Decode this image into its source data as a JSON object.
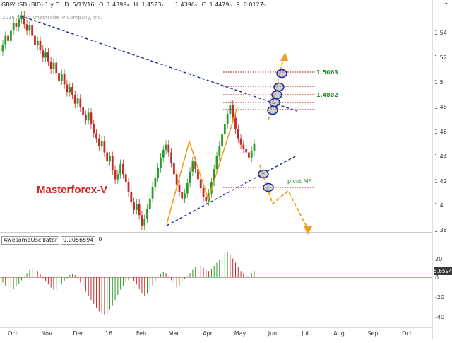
{
  "header": {
    "symbol": "GBP/USD (BID) 1 y D",
    "date": "D: 5/17/16",
    "open": "O: 1.4399₄",
    "high": "H: 1.4523₁",
    "low": "L: 1.4396₅",
    "close": "C: 1.4479₆",
    "range": "R: 0.0127₅"
  },
  "copyright": "2016 © TD Ameritrade IP Company, Inc.",
  "brand_text": "Masterforex-V",
  "levels": {
    "upper": "1.5063",
    "lower": "1.4882",
    "pivot": "pivot MF"
  },
  "oscillator_header": {
    "name": "AwesomeOscillator",
    "value": "0.0056594",
    "third": "0"
  },
  "oscillator_value_box": "5.65941",
  "price_axis_ticks": [
    "1.54",
    "1.52",
    "1.5",
    "1.48",
    "1.46",
    "1.44",
    "1.42",
    "1.4",
    "1.38"
  ],
  "osc_axis_ticks": [
    "20",
    "0",
    "-20",
    "-40"
  ],
  "time_axis_ticks": [
    "Oct",
    "Nov",
    "Dec",
    "16",
    "Feb",
    "Mar",
    "Apr",
    "May",
    "Jun",
    "Jul",
    "Aug",
    "Sep",
    "Oct"
  ],
  "colors": {
    "bull": "#2a9a2a",
    "bear": "#c42a2a",
    "trendline": "#1a2a9a",
    "projection": "#f0a020",
    "level_line": "#c42a2a",
    "circle": "#1a2aa0",
    "brand": "#d42020"
  },
  "chart_data": {
    "type": "candlestick",
    "series": [
      {
        "name": "GBP/USD (BID)",
        "close": [
          1.525,
          1.532,
          1.528,
          1.536,
          1.542,
          1.539,
          1.545,
          1.548,
          1.541,
          1.536,
          1.54,
          1.532,
          1.525,
          1.528,
          1.521,
          1.515,
          1.519,
          1.512,
          1.506,
          1.511,
          1.503,
          1.497,
          1.502,
          1.494,
          1.488,
          1.492,
          1.486,
          1.479,
          1.483,
          1.476,
          1.47,
          1.466,
          1.472,
          1.463,
          1.456,
          1.452,
          1.446,
          1.45,
          1.441,
          1.434,
          1.438,
          1.427,
          1.42,
          1.424,
          1.432,
          1.424,
          1.418,
          1.41,
          1.402,
          1.396,
          1.401,
          1.392,
          1.384,
          1.389,
          1.397,
          1.405,
          1.414,
          1.421,
          1.429,
          1.437,
          1.443,
          1.447,
          1.441,
          1.433,
          1.424,
          1.416,
          1.41,
          1.405,
          1.409,
          1.417,
          1.426,
          1.434,
          1.428,
          1.42,
          1.413,
          1.406,
          1.403,
          1.409,
          1.418,
          1.428,
          1.438,
          1.446,
          1.455,
          1.463,
          1.471,
          1.478,
          1.468,
          1.459,
          1.452,
          1.447,
          1.444,
          1.441,
          1.437,
          1.442,
          1.448
        ],
        "open": [
          1.52,
          1.525,
          1.532,
          1.528,
          1.536,
          1.542,
          1.539,
          1.545,
          1.548,
          1.541,
          1.536,
          1.54,
          1.532,
          1.525,
          1.528,
          1.521,
          1.515,
          1.519,
          1.512,
          1.506,
          1.511,
          1.503,
          1.497,
          1.502,
          1.494,
          1.488,
          1.492,
          1.486,
          1.479,
          1.483,
          1.476,
          1.47,
          1.466,
          1.472,
          1.463,
          1.456,
          1.452,
          1.446,
          1.45,
          1.441,
          1.434,
          1.438,
          1.427,
          1.42,
          1.424,
          1.432,
          1.424,
          1.418,
          1.41,
          1.402,
          1.396,
          1.401,
          1.392,
          1.384,
          1.389,
          1.397,
          1.405,
          1.414,
          1.421,
          1.429,
          1.437,
          1.443,
          1.447,
          1.441,
          1.433,
          1.424,
          1.416,
          1.41,
          1.405,
          1.409,
          1.417,
          1.426,
          1.434,
          1.428,
          1.42,
          1.413,
          1.406,
          1.403,
          1.409,
          1.418,
          1.428,
          1.438,
          1.446,
          1.455,
          1.463,
          1.471,
          1.478,
          1.468,
          1.459,
          1.452,
          1.447,
          1.444,
          1.441,
          1.437,
          1.442
        ]
      }
    ],
    "ylim": [
      1.38,
      1.55
    ],
    "oscillator": {
      "name": "AwesomeOscillator",
      "values": [
        -5,
        -8,
        -10,
        -12,
        -11,
        -9,
        -6,
        -3,
        1,
        4,
        7,
        9,
        8,
        6,
        3,
        -1,
        -4,
        -7,
        -10,
        -12,
        -11,
        -9,
        -7,
        -4,
        -1,
        2,
        3,
        2,
        -1,
        -5,
        -9,
        -14,
        -18,
        -22,
        -26,
        -30,
        -33,
        -35,
        -36,
        -34,
        -31,
        -27,
        -22,
        -17,
        -12,
        -8,
        -5,
        -3,
        -2,
        -4,
        -7,
        -11,
        -15,
        -18,
        -16,
        -12,
        -8,
        -4,
        0,
        3,
        5,
        4,
        1,
        -3,
        -7,
        -10,
        -8,
        -5,
        -2,
        1,
        4,
        7,
        10,
        12,
        11,
        9,
        7,
        6,
        8,
        11,
        14,
        17,
        20,
        23,
        24,
        22,
        18,
        14,
        10,
        6,
        4,
        3,
        2,
        4,
        6
      ],
      "ylim": [
        -45,
        30
      ]
    }
  }
}
